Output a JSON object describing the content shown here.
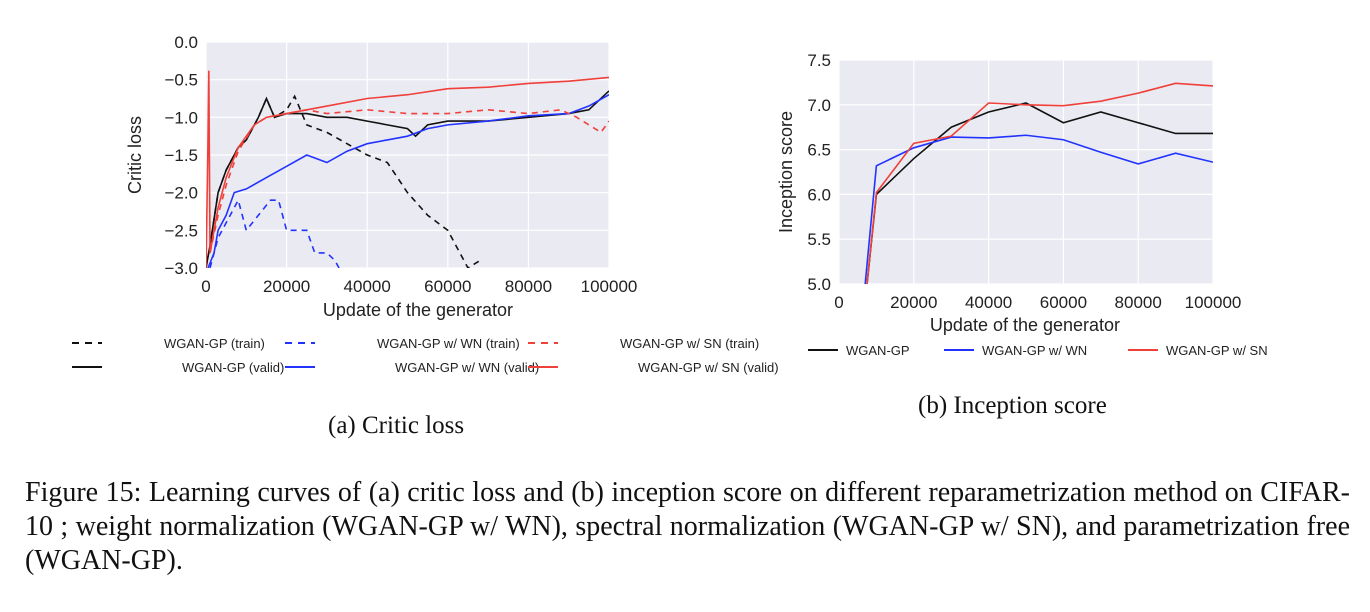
{
  "colors": {
    "black": "#111111",
    "blue": "#2233ff",
    "red": "#f0403a",
    "plot_bg": "#eaeaf2",
    "grid": "#ffffff"
  },
  "chart_data": [
    {
      "type": "line",
      "xlabel": "Update of the generator",
      "ylabel": "Critic loss",
      "xlim": [
        0,
        100000
      ],
      "ylim": [
        -3.0,
        0.0
      ],
      "xticks": [
        "0",
        "20000",
        "40000",
        "60000",
        "80000",
        "100000"
      ],
      "yticks": [
        "0.0",
        "−0.5",
        "−1.0",
        "−1.5",
        "−2.0",
        "−2.5",
        "−3.0"
      ],
      "grid": true,
      "legend": "bottom",
      "legend_columns": 3,
      "series": [
        {
          "name": "WGAN-GP (train)",
          "color": "black",
          "style": "dashed",
          "points": [
            [
              0,
              -3.0
            ],
            [
              1000,
              -2.7
            ],
            [
              3000,
              -2.0
            ],
            [
              5000,
              -1.7
            ],
            [
              8000,
              -1.4
            ],
            [
              10000,
              -1.3
            ],
            [
              13000,
              -1.0
            ],
            [
              15000,
              -0.75
            ],
            [
              17000,
              -1.0
            ],
            [
              20000,
              -0.9
            ],
            [
              22000,
              -0.72
            ],
            [
              25000,
              -1.1
            ],
            [
              30000,
              -1.2
            ],
            [
              35000,
              -1.35
            ],
            [
              40000,
              -1.5
            ],
            [
              45000,
              -1.6
            ],
            [
              50000,
              -2.0
            ],
            [
              55000,
              -2.3
            ],
            [
              60000,
              -2.5
            ],
            [
              63000,
              -2.8
            ],
            [
              65000,
              -3.0
            ],
            [
              68000,
              -2.9
            ]
          ]
        },
        {
          "name": "WGAN-GP (valid)",
          "color": "black",
          "style": "solid",
          "points": [
            [
              0,
              -3.0
            ],
            [
              1000,
              -2.7
            ],
            [
              3000,
              -2.0
            ],
            [
              5000,
              -1.7
            ],
            [
              8000,
              -1.4
            ],
            [
              10000,
              -1.3
            ],
            [
              13000,
              -1.0
            ],
            [
              15000,
              -0.75
            ],
            [
              17000,
              -1.0
            ],
            [
              20000,
              -0.95
            ],
            [
              25000,
              -0.95
            ],
            [
              30000,
              -1.0
            ],
            [
              35000,
              -1.0
            ],
            [
              40000,
              -1.05
            ],
            [
              45000,
              -1.1
            ],
            [
              50000,
              -1.15
            ],
            [
              52000,
              -1.25
            ],
            [
              55000,
              -1.1
            ],
            [
              60000,
              -1.05
            ],
            [
              70000,
              -1.05
            ],
            [
              80000,
              -1.0
            ],
            [
              90000,
              -0.95
            ],
            [
              95000,
              -0.9
            ],
            [
              100000,
              -0.65
            ]
          ]
        },
        {
          "name": "WGAN-GP w/ WN (train)",
          "color": "blue",
          "style": "dashed",
          "points": [
            [
              1000,
              -3.0
            ],
            [
              3000,
              -2.6
            ],
            [
              5000,
              -2.4
            ],
            [
              8000,
              -2.1
            ],
            [
              10000,
              -2.5
            ],
            [
              13000,
              -2.3
            ],
            [
              16000,
              -2.1
            ],
            [
              18000,
              -2.1
            ],
            [
              20000,
              -2.5
            ],
            [
              25000,
              -2.5
            ],
            [
              27000,
              -2.8
            ],
            [
              30000,
              -2.8
            ],
            [
              32000,
              -2.9
            ],
            [
              33000,
              -3.0
            ]
          ]
        },
        {
          "name": "WGAN-GP w/ WN (valid)",
          "color": "blue",
          "style": "solid",
          "points": [
            [
              500,
              -3.0
            ],
            [
              2000,
              -2.8
            ],
            [
              3000,
              -2.5
            ],
            [
              5000,
              -2.3
            ],
            [
              7000,
              -2.0
            ],
            [
              10000,
              -1.95
            ],
            [
              15000,
              -1.8
            ],
            [
              20000,
              -1.65
            ],
            [
              25000,
              -1.5
            ],
            [
              30000,
              -1.6
            ],
            [
              35000,
              -1.45
            ],
            [
              40000,
              -1.35
            ],
            [
              45000,
              -1.3
            ],
            [
              50000,
              -1.25
            ],
            [
              55000,
              -1.15
            ],
            [
              60000,
              -1.1
            ],
            [
              70000,
              -1.05
            ],
            [
              80000,
              -0.98
            ],
            [
              90000,
              -0.95
            ],
            [
              95000,
              -0.85
            ],
            [
              100000,
              -0.7
            ]
          ]
        },
        {
          "name": "WGAN-GP w/ SN (train)",
          "color": "red",
          "style": "dashed",
          "points": [
            [
              1000,
              -2.8
            ],
            [
              3000,
              -2.3
            ],
            [
              5000,
              -1.9
            ],
            [
              8000,
              -1.45
            ],
            [
              12000,
              -1.1
            ],
            [
              15000,
              -1.0
            ],
            [
              20000,
              -0.95
            ],
            [
              25000,
              -0.9
            ],
            [
              30000,
              -0.95
            ],
            [
              40000,
              -0.9
            ],
            [
              50000,
              -0.95
            ],
            [
              60000,
              -0.95
            ],
            [
              70000,
              -0.9
            ],
            [
              80000,
              -0.95
            ],
            [
              88000,
              -0.9
            ],
            [
              92000,
              -1.0
            ],
            [
              95000,
              -1.1
            ],
            [
              98000,
              -1.2
            ],
            [
              100000,
              -1.05
            ]
          ]
        },
        {
          "name": "WGAN-GP w/ SN (valid)",
          "color": "red",
          "style": "solid",
          "points": [
            [
              0,
              -3.0
            ],
            [
              500,
              -1.3
            ],
            [
              700,
              -0.38
            ],
            [
              1000,
              -2.8
            ],
            [
              3000,
              -2.2
            ],
            [
              5000,
              -1.8
            ],
            [
              8000,
              -1.4
            ],
            [
              12000,
              -1.1
            ],
            [
              15000,
              -1.0
            ],
            [
              20000,
              -0.95
            ],
            [
              25000,
              -0.9
            ],
            [
              30000,
              -0.85
            ],
            [
              40000,
              -0.75
            ],
            [
              50000,
              -0.7
            ],
            [
              60000,
              -0.62
            ],
            [
              70000,
              -0.6
            ],
            [
              80000,
              -0.55
            ],
            [
              90000,
              -0.52
            ],
            [
              100000,
              -0.47
            ]
          ]
        }
      ]
    },
    {
      "type": "line",
      "xlabel": "Update of the generator",
      "ylabel": "Inception score",
      "xlim": [
        0,
        100000
      ],
      "ylim": [
        5.0,
        7.5
      ],
      "xticks": [
        "0",
        "20000",
        "40000",
        "60000",
        "80000",
        "100000"
      ],
      "yticks": [
        "5.0",
        "5.5",
        "6.0",
        "6.5",
        "7.0",
        "7.5"
      ],
      "grid": true,
      "legend": "bottom",
      "legend_columns": 3,
      "series": [
        {
          "name": "WGAN-GP",
          "color": "black",
          "style": "solid",
          "points": [
            [
              7500,
              5.0
            ],
            [
              10000,
              6.0
            ],
            [
              20000,
              6.4
            ],
            [
              30000,
              6.75
            ],
            [
              40000,
              6.92
            ],
            [
              50000,
              7.02
            ],
            [
              60000,
              6.8
            ],
            [
              70000,
              6.92
            ],
            [
              80000,
              6.8
            ],
            [
              90000,
              6.68
            ],
            [
              100000,
              6.68
            ]
          ]
        },
        {
          "name": "WGAN-GP w/ WN",
          "color": "blue",
          "style": "solid",
          "points": [
            [
              7000,
              5.0
            ],
            [
              10000,
              6.32
            ],
            [
              20000,
              6.52
            ],
            [
              30000,
              6.64
            ],
            [
              40000,
              6.63
            ],
            [
              50000,
              6.66
            ],
            [
              60000,
              6.61
            ],
            [
              70000,
              6.47
            ],
            [
              80000,
              6.34
            ],
            [
              90000,
              6.46
            ],
            [
              100000,
              6.36
            ]
          ]
        },
        {
          "name": "WGAN-GP w/ SN",
          "color": "red",
          "style": "solid",
          "points": [
            [
              7500,
              5.0
            ],
            [
              10000,
              6.02
            ],
            [
              20000,
              6.57
            ],
            [
              30000,
              6.65
            ],
            [
              40000,
              7.02
            ],
            [
              50000,
              7.0
            ],
            [
              60000,
              6.99
            ],
            [
              70000,
              7.04
            ],
            [
              80000,
              7.13
            ],
            [
              90000,
              7.24
            ],
            [
              100000,
              7.21
            ]
          ]
        }
      ]
    }
  ],
  "subcaptions": {
    "a": "(a) Critic loss",
    "b": "(b) Inception score"
  },
  "caption": "Figure 15:  Learning curves of (a) critic loss and (b) inception score on different reparametrization method on CIFAR-10 ; weight normalization (WGAN-GP w/ WN), spectral normalization (WGAN-GP w/ SN), and parametrization free (WGAN-GP)."
}
